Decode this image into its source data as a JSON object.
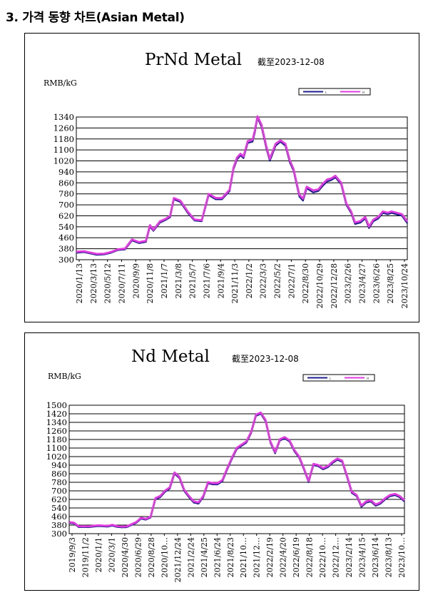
{
  "page": {
    "heading": "3. 가격 동향 차트(Asian Metal)"
  },
  "chart_data": [
    {
      "type": "line",
      "title": "PrNd Metal",
      "date_note": "截至2023-12-08",
      "ylabel": "RMB/kG",
      "legend": [
        "L",
        "H"
      ],
      "ylim": [
        300,
        1340
      ],
      "yticks": [
        300,
        380,
        460,
        540,
        620,
        700,
        780,
        860,
        940,
        1020,
        1100,
        1180,
        1260,
        1340
      ],
      "xticks": [
        "2020/1/13",
        "2020/3/13",
        "2020/5/12",
        "2020/7/11",
        "2020/9/9",
        "2020/11/8",
        "2021/1/7",
        "2021/3/8",
        "2021/5/7",
        "2021/7/6",
        "2021/9/4",
        "2021/11/3",
        "2022/1/2",
        "2022/3/3",
        "2022/5/2",
        "2022/7/1",
        "2022/8/30",
        "2022/10/29",
        "2022/12/28",
        "2023/2/26",
        "2023/4/27",
        "2023/6/26",
        "2023/8/25",
        "2023/10/24"
      ],
      "series": [
        {
          "name": "L",
          "color": "#1f1f8f",
          "x": [
            "2020/1/13",
            "2020/2/15",
            "2020/3/13",
            "2020/4/10",
            "2020/5/12",
            "2020/6/10",
            "2020/7/11",
            "2020/8/10",
            "2020/9/9",
            "2020/10/9",
            "2020/11/8",
            "2020/11/25",
            "2020/12/10",
            "2021/1/7",
            "2021/2/1",
            "2021/2/20",
            "2021/3/8",
            "2021/4/5",
            "2021/5/7",
            "2021/6/5",
            "2021/7/6",
            "2021/8/5",
            "2021/9/4",
            "2021/10/1",
            "2021/11/3",
            "2021/11/20",
            "2021/12/5",
            "2021/12/20",
            "2022/1/2",
            "2022/1/20",
            "2022/2/10",
            "2022/2/20",
            "2022/3/3",
            "2022/3/20",
            "2022/4/10",
            "2022/4/25",
            "2022/5/2",
            "2022/5/20",
            "2022/6/10",
            "2022/7/1",
            "2022/7/20",
            "2022/8/5",
            "2022/8/30",
            "2022/9/15",
            "2022/10/1",
            "2022/10/29",
            "2022/11/20",
            "2022/12/10",
            "2022/12/28",
            "2023/1/15",
            "2023/2/1",
            "2023/2/26",
            "2023/3/20",
            "2023/4/10",
            "2023/4/27",
            "2023/5/20",
            "2023/6/10",
            "2023/6/26",
            "2023/7/15",
            "2023/8/5",
            "2023/8/25",
            "2023/9/15",
            "2023/10/1",
            "2023/10/24",
            "2023/11/15",
            "2023/12/8"
          ],
          "y": [
            350,
            355,
            345,
            335,
            338,
            350,
            370,
            375,
            440,
            420,
            430,
            540,
            510,
            570,
            590,
            610,
            740,
            720,
            640,
            585,
            580,
            770,
            740,
            740,
            800,
            960,
            1030,
            1060,
            1040,
            1150,
            1160,
            1230,
            1335,
            1270,
            1110,
            1020,
            1050,
            1130,
            1160,
            1130,
            1010,
            950,
            760,
            730,
            820,
            790,
            800,
            840,
            870,
            880,
            900,
            850,
            700,
            640,
            560,
            570,
            600,
            530,
            580,
            600,
            640,
            630,
            640,
            630,
            620,
            565
          ]
        },
        {
          "name": "H",
          "color": "#e23be0",
          "x": [
            "2020/1/13",
            "2020/2/15",
            "2020/3/13",
            "2020/4/10",
            "2020/5/12",
            "2020/6/10",
            "2020/7/11",
            "2020/8/10",
            "2020/9/9",
            "2020/10/9",
            "2020/11/8",
            "2020/11/25",
            "2020/12/10",
            "2021/1/7",
            "2021/2/1",
            "2021/2/20",
            "2021/3/8",
            "2021/4/5",
            "2021/5/7",
            "2021/6/5",
            "2021/7/6",
            "2021/8/5",
            "2021/9/4",
            "2021/10/1",
            "2021/11/3",
            "2021/11/20",
            "2021/12/5",
            "2021/12/20",
            "2022/1/2",
            "2022/1/20",
            "2022/2/10",
            "2022/2/20",
            "2022/3/3",
            "2022/3/20",
            "2022/4/10",
            "2022/4/25",
            "2022/5/2",
            "2022/5/20",
            "2022/6/10",
            "2022/7/1",
            "2022/7/20",
            "2022/8/5",
            "2022/8/30",
            "2022/9/15",
            "2022/10/1",
            "2022/10/29",
            "2022/11/20",
            "2022/12/10",
            "2022/12/28",
            "2023/1/15",
            "2023/2/1",
            "2023/2/26",
            "2023/3/20",
            "2023/4/10",
            "2023/4/27",
            "2023/5/20",
            "2023/6/10",
            "2023/6/26",
            "2023/7/15",
            "2023/8/5",
            "2023/8/25",
            "2023/9/15",
            "2023/10/1",
            "2023/10/24",
            "2023/11/15",
            "2023/12/8"
          ],
          "y": [
            358,
            362,
            352,
            342,
            344,
            356,
            376,
            381,
            448,
            428,
            438,
            552,
            518,
            580,
            598,
            620,
            750,
            730,
            650,
            593,
            588,
            780,
            750,
            750,
            810,
            972,
            1045,
            1072,
            1052,
            1165,
            1175,
            1245,
            1345,
            1285,
            1125,
            1035,
            1065,
            1145,
            1170,
            1145,
            1025,
            962,
            775,
            745,
            832,
            805,
            812,
            855,
            885,
            893,
            912,
            862,
            712,
            652,
            572,
            582,
            612,
            542,
            592,
            612,
            652,
            642,
            652,
            642,
            632,
            578
          ]
        }
      ]
    },
    {
      "type": "line",
      "title": "Nd Metal",
      "date_note": "截至2023-12-08",
      "ylabel": "RMB/kG",
      "legend": [
        "L",
        "H"
      ],
      "ylim": [
        300,
        1500
      ],
      "yticks": [
        300,
        380,
        460,
        540,
        620,
        700,
        780,
        860,
        940,
        1020,
        1100,
        1180,
        1260,
        1340,
        1420,
        1500
      ],
      "xticks": [
        "2019/9/3",
        "2019/11/2",
        "2020/1/1",
        "2020/3/1",
        "2020/4/30",
        "2020/6/29",
        "2020/8/28",
        "2020/10…",
        "2021/12/24",
        "2021/2/24",
        "2021/4/25",
        "2021/6/24",
        "2021/8/23",
        "2021/10…",
        "2021/12…",
        "2022/2/19",
        "2022/4/20",
        "2022/6/19",
        "2022/8/18",
        "2022/10…",
        "2022/12…",
        "2023/2/14",
        "2023/4/15",
        "2023/6/14",
        "2023/8/13",
        "2023/10…"
      ],
      "series": [
        {
          "name": "L",
          "color": "#1f1f8f",
          "y": [
            400,
            395,
            360,
            362,
            360,
            365,
            370,
            368,
            365,
            375,
            362,
            358,
            360,
            380,
            400,
            440,
            430,
            450,
            620,
            640,
            690,
            720,
            860,
            820,
            700,
            640,
            590,
            580,
            640,
            770,
            760,
            760,
            790,
            900,
            1000,
            1090,
            1120,
            1150,
            1240,
            1400,
            1420,
            1350,
            1150,
            1050,
            1170,
            1190,
            1160,
            1070,
            1010,
            900,
            780,
            940,
            930,
            900,
            920,
            960,
            990,
            970,
            830,
            680,
            650,
            550,
            590,
            600,
            560,
            580,
            620,
            650,
            660,
            640,
            600
          ]
        },
        {
          "name": "H",
          "color": "#e23be0",
          "y": [
            408,
            403,
            368,
            370,
            368,
            373,
            378,
            376,
            373,
            383,
            370,
            366,
            368,
            388,
            408,
            448,
            438,
            458,
            632,
            652,
            702,
            732,
            872,
            832,
            712,
            652,
            602,
            592,
            652,
            782,
            772,
            772,
            802,
            912,
            1012,
            1102,
            1132,
            1162,
            1252,
            1412,
            1432,
            1362,
            1162,
            1062,
            1182,
            1202,
            1172,
            1082,
            1022,
            912,
            792,
            952,
            942,
            912,
            932,
            972,
            1002,
            982,
            842,
            692,
            662,
            562,
            602,
            612,
            572,
            592,
            632,
            662,
            672,
            652,
            612
          ]
        }
      ]
    }
  ]
}
